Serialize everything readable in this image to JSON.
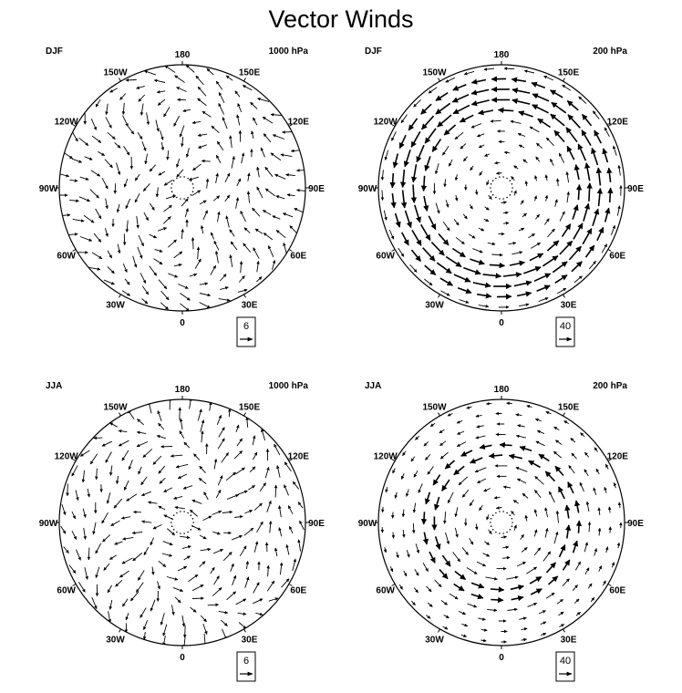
{
  "title": "Vector Winds",
  "colors": {
    "land": "#c2c2c2",
    "ocean": "#ffffff",
    "arrow": "#000000",
    "frame": "#000000"
  },
  "longitude_labels": [
    "180",
    "150E",
    "120E",
    "90E",
    "60E",
    "30E",
    "0",
    "30W",
    "60W",
    "90W",
    "120W",
    "150W"
  ],
  "panels": [
    {
      "id": "djf-1000",
      "season": "DJF",
      "level": "1000 hPa",
      "reference_magnitude": "6",
      "flow": "surface"
    },
    {
      "id": "djf-200",
      "season": "DJF",
      "level": "200 hPa",
      "reference_magnitude": "40",
      "flow": "upper"
    },
    {
      "id": "jja-1000",
      "season": "JJA",
      "level": "1000 hPa",
      "reference_magnitude": "6",
      "flow": "surface"
    },
    {
      "id": "jja-200",
      "season": "JJA",
      "level": "200 hPa",
      "reference_magnitude": "40",
      "flow": "upper"
    }
  ]
}
